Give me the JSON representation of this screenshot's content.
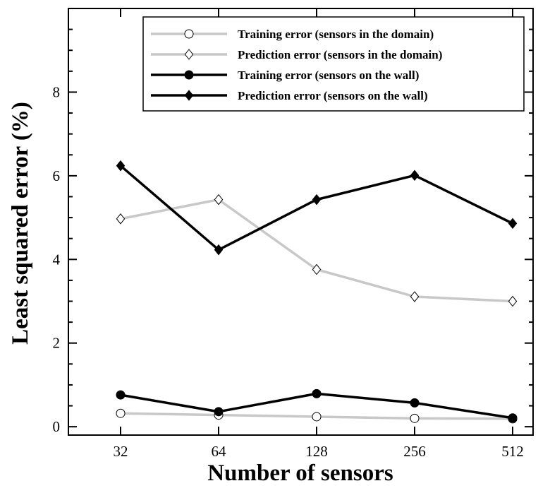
{
  "chart_data": {
    "type": "line",
    "title": "",
    "xlabel": "Number of sensors",
    "ylabel": "Least squared error (%)",
    "categories": [
      "32",
      "64",
      "128",
      "256",
      "512"
    ],
    "yticks": [
      "0",
      "2",
      "4",
      "6",
      "8"
    ],
    "ylim": [
      -0.2,
      10.0
    ],
    "x_scale": "log2-categorical",
    "grid": false,
    "legend_position": "top-right",
    "series": [
      {
        "name": "Training error (sensors in the domain)",
        "values": [
          0.32,
          0.28,
          0.24,
          0.2,
          0.19
        ],
        "color": "#c8c8c8",
        "marker": "circle",
        "filled": false
      },
      {
        "name": "Prediction error (sensors in the domain)",
        "values": [
          4.97,
          5.43,
          3.76,
          3.11,
          3.0
        ],
        "color": "#c8c8c8",
        "marker": "diamond",
        "filled": false
      },
      {
        "name": "Training error (sensors on the wall)",
        "values": [
          0.76,
          0.36,
          0.79,
          0.57,
          0.21
        ],
        "color": "#000000",
        "marker": "circle",
        "filled": true
      },
      {
        "name": "Prediction error (sensors on the wall)",
        "values": [
          6.24,
          4.23,
          5.43,
          6.01,
          4.86
        ],
        "color": "#000000",
        "marker": "diamond",
        "filled": true
      }
    ]
  }
}
